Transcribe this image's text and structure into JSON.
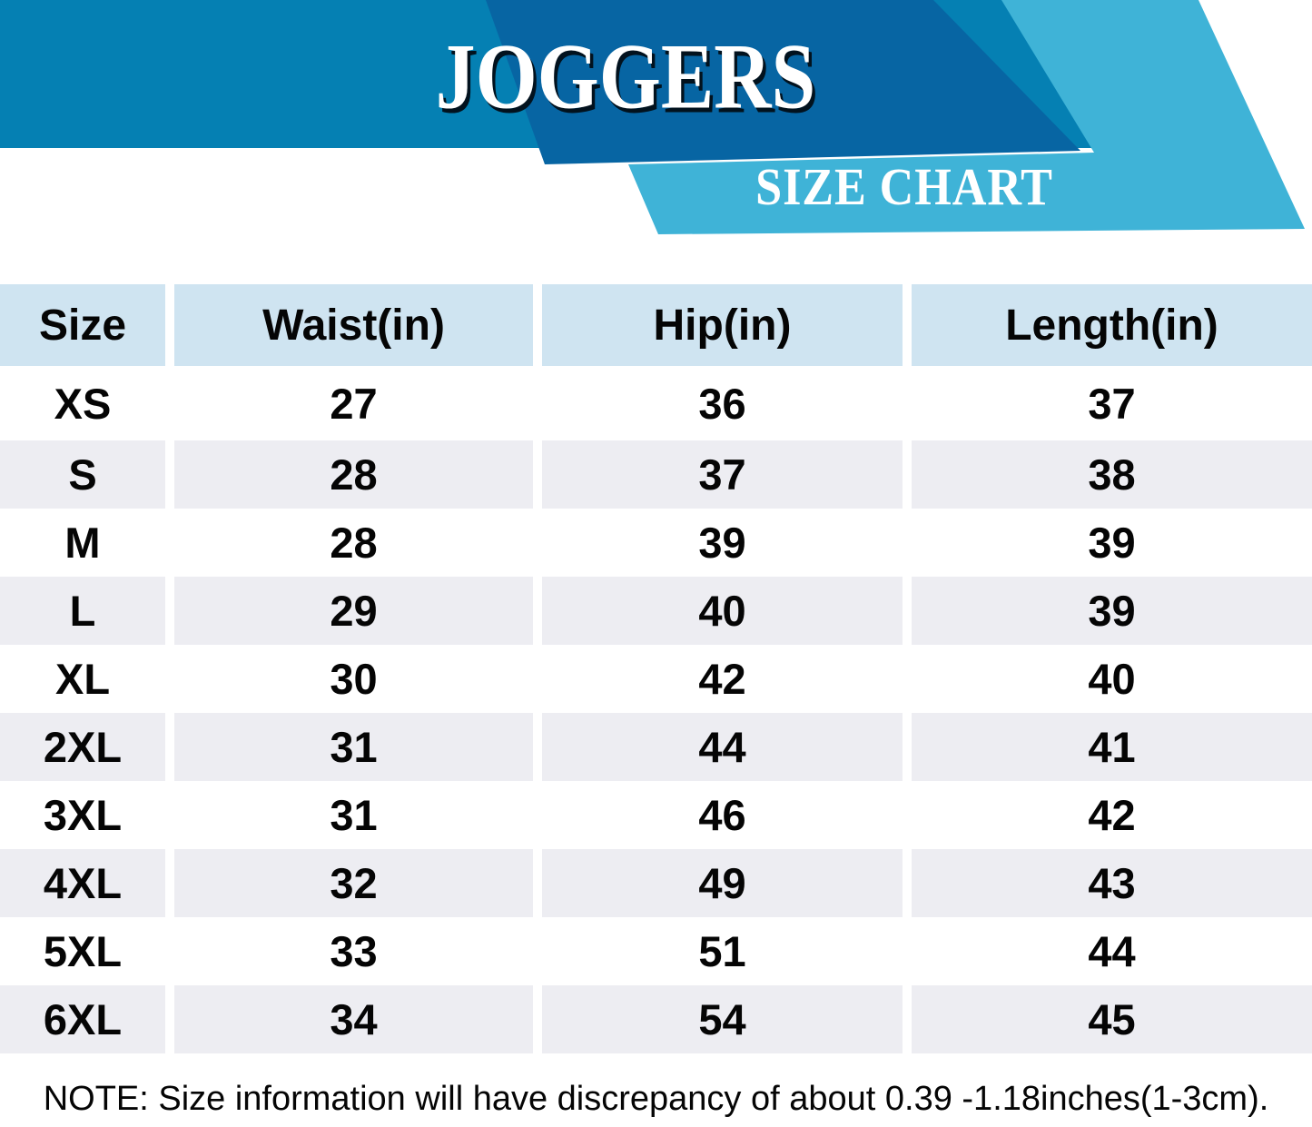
{
  "banner": {
    "title": "JOGGERS",
    "subtitle": "SIZE CHART",
    "colors": {
      "band": "#0580b3",
      "dark": "#0765a3",
      "light": "#3fb3d7",
      "title_shadow": "#02121e"
    }
  },
  "table": {
    "columns": [
      "Size",
      "Waist(in)",
      "Hip(in)",
      "Length(in)"
    ],
    "rows": [
      {
        "size": "XS",
        "waist": "27",
        "hip": "36",
        "length": "37"
      },
      {
        "size": "S",
        "waist": "28",
        "hip": "37",
        "length": "38"
      },
      {
        "size": "M",
        "waist": "28",
        "hip": "39",
        "length": "39"
      },
      {
        "size": "L",
        "waist": "29",
        "hip": "40",
        "length": "39"
      },
      {
        "size": "XL",
        "waist": "30",
        "hip": "42",
        "length": "40"
      },
      {
        "size": "2XL",
        "waist": "31",
        "hip": "44",
        "length": "41"
      },
      {
        "size": "3XL",
        "waist": "31",
        "hip": "46",
        "length": "42"
      },
      {
        "size": "4XL",
        "waist": "32",
        "hip": "49",
        "length": "43"
      },
      {
        "size": "5XL",
        "waist": "33",
        "hip": "51",
        "length": "44"
      },
      {
        "size": "6XL",
        "waist": "34",
        "hip": "54",
        "length": "45"
      }
    ],
    "colors": {
      "header_bg": "#cfe4f1",
      "alt_row_bg": "#ededf2"
    }
  },
  "note": "NOTE: Size information will have discrepancy of about 0.39 -1.18inches(1-3cm)."
}
